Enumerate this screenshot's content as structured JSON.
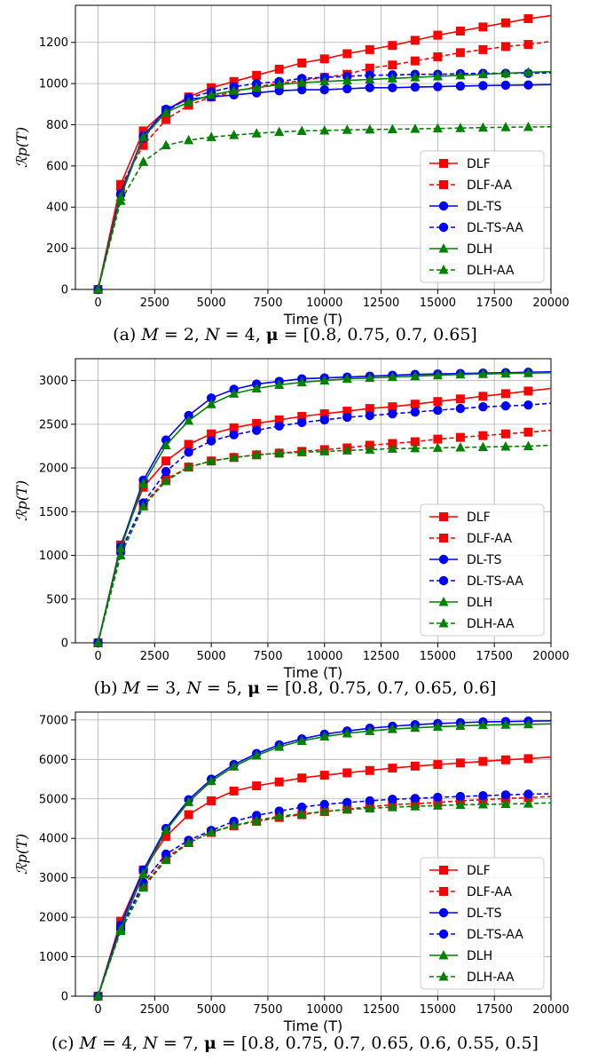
{
  "chart_data": [
    {
      "type": "line",
      "xlabel": "Time (T)",
      "ylabel": "ℛp(T)",
      "xlim": [
        -1000,
        20000
      ],
      "ylim": [
        0,
        1380
      ],
      "xticks": [
        "0",
        "2500",
        "5000",
        "7500",
        "10000",
        "12500",
        "15000",
        "17500",
        "20000"
      ],
      "yticks": [
        "0",
        "200",
        "400",
        "600",
        "800",
        "1000",
        "1200"
      ],
      "ytick_values": [
        0,
        200,
        400,
        600,
        800,
        1000,
        1200
      ],
      "grid": true,
      "legend_position": "lower-right",
      "caption": "(a) M = 2, N = 4, μ = [0.8, 0.75, 0.7, 0.65]",
      "x": [
        0,
        1000,
        2000,
        3000,
        4000,
        5000,
        6000,
        7000,
        8000,
        9000,
        10000,
        11000,
        12000,
        13000,
        14000,
        15000,
        16000,
        17000,
        18000,
        19000,
        20000
      ],
      "series": [
        {
          "name": "DLF",
          "color": "#ff0000",
          "dashed": false,
          "marker": "square",
          "values": [
            0,
            510,
            770,
            870,
            935,
            980,
            1010,
            1040,
            1070,
            1100,
            1120,
            1145,
            1165,
            1185,
            1210,
            1235,
            1255,
            1275,
            1295,
            1315,
            1330
          ]
        },
        {
          "name": "DLF-AA",
          "color": "#ff0000",
          "dashed": true,
          "marker": "square",
          "values": [
            0,
            500,
            700,
            825,
            895,
            935,
            960,
            985,
            1000,
            1015,
            1030,
            1045,
            1075,
            1090,
            1110,
            1130,
            1150,
            1165,
            1180,
            1190,
            1205
          ]
        },
        {
          "name": "DL-TS",
          "color": "#0000ff",
          "dashed": false,
          "marker": "circle",
          "values": [
            0,
            465,
            745,
            875,
            925,
            935,
            945,
            955,
            965,
            970,
            970,
            975,
            980,
            980,
            983,
            985,
            988,
            990,
            992,
            993,
            995
          ]
        },
        {
          "name": "DL-TS-AA",
          "color": "#0000ff",
          "dashed": true,
          "marker": "circle",
          "values": [
            0,
            460,
            735,
            865,
            930,
            960,
            985,
            1000,
            1010,
            1025,
            1030,
            1035,
            1040,
            1042,
            1045,
            1045,
            1048,
            1050,
            1050,
            1050,
            1052
          ]
        },
        {
          "name": "DLH",
          "color": "#008000",
          "dashed": false,
          "marker": "triangle",
          "values": [
            0,
            450,
            740,
            860,
            910,
            945,
            965,
            980,
            995,
            1005,
            1010,
            1015,
            1020,
            1025,
            1030,
            1035,
            1040,
            1045,
            1050,
            1055,
            1058
          ]
        },
        {
          "name": "DLH-AA",
          "color": "#008000",
          "dashed": true,
          "marker": "triangle",
          "values": [
            0,
            430,
            620,
            700,
            725,
            740,
            750,
            758,
            765,
            770,
            772,
            775,
            777,
            778,
            780,
            782,
            784,
            786,
            788,
            789,
            790
          ]
        }
      ]
    },
    {
      "type": "line",
      "xlabel": "Time (T)",
      "ylabel": "ℛp(T)",
      "xlim": [
        -1000,
        20000
      ],
      "ylim": [
        0,
        3250
      ],
      "xticks": [
        "0",
        "2500",
        "5000",
        "7500",
        "10000",
        "12500",
        "15000",
        "17500",
        "20000"
      ],
      "yticks": [
        "0",
        "500",
        "1000",
        "1500",
        "2000",
        "2500",
        "3000"
      ],
      "ytick_values": [
        0,
        500,
        1000,
        1500,
        2000,
        2500,
        3000
      ],
      "grid": true,
      "legend_position": "lower-right",
      "caption": "(b) M = 3, N = 5, μ = [0.8, 0.75, 0.7, 0.65, 0.6]",
      "x": [
        0,
        1000,
        2000,
        3000,
        4000,
        5000,
        6000,
        7000,
        8000,
        9000,
        10000,
        11000,
        12000,
        13000,
        14000,
        15000,
        16000,
        17000,
        18000,
        19000,
        20000
      ],
      "series": [
        {
          "name": "DLF",
          "color": "#ff0000",
          "dashed": false,
          "marker": "square",
          "values": [
            0,
            1120,
            1780,
            2080,
            2270,
            2390,
            2460,
            2510,
            2550,
            2590,
            2620,
            2650,
            2680,
            2700,
            2730,
            2760,
            2790,
            2820,
            2850,
            2880,
            2910
          ]
        },
        {
          "name": "DLF-AA",
          "color": "#ff0000",
          "dashed": true,
          "marker": "square",
          "values": [
            0,
            1060,
            1580,
            1870,
            2010,
            2080,
            2120,
            2150,
            2170,
            2190,
            2210,
            2230,
            2260,
            2280,
            2300,
            2330,
            2350,
            2370,
            2390,
            2410,
            2430
          ]
        },
        {
          "name": "DL-TS",
          "color": "#0000ff",
          "dashed": false,
          "marker": "circle",
          "values": [
            0,
            1100,
            1860,
            2320,
            2600,
            2800,
            2900,
            2960,
            2990,
            3020,
            3030,
            3040,
            3050,
            3060,
            3070,
            3075,
            3080,
            3085,
            3090,
            3095,
            3100
          ]
        },
        {
          "name": "DL-TS-AA",
          "color": "#0000ff",
          "dashed": true,
          "marker": "circle",
          "values": [
            0,
            1040,
            1600,
            1960,
            2180,
            2310,
            2380,
            2430,
            2480,
            2520,
            2550,
            2580,
            2600,
            2620,
            2640,
            2660,
            2680,
            2700,
            2710,
            2720,
            2740
          ]
        },
        {
          "name": "DLH",
          "color": "#008000",
          "dashed": false,
          "marker": "triangle",
          "values": [
            0,
            1080,
            1820,
            2260,
            2540,
            2730,
            2850,
            2910,
            2950,
            2980,
            3000,
            3020,
            3030,
            3040,
            3050,
            3060,
            3070,
            3075,
            3080,
            3085,
            3090
          ]
        },
        {
          "name": "DLH-AA",
          "color": "#008000",
          "dashed": true,
          "marker": "triangle",
          "values": [
            0,
            1000,
            1560,
            1850,
            2010,
            2080,
            2120,
            2150,
            2170,
            2180,
            2190,
            2200,
            2210,
            2220,
            2225,
            2230,
            2235,
            2240,
            2245,
            2250,
            2260
          ]
        }
      ]
    },
    {
      "type": "line",
      "xlabel": "Time (T)",
      "ylabel": "ℛp(T)",
      "xlim": [
        -1000,
        20000
      ],
      "ylim": [
        0,
        7200
      ],
      "xticks": [
        "0",
        "2500",
        "5000",
        "7500",
        "10000",
        "12500",
        "15000",
        "17500",
        "20000"
      ],
      "yticks": [
        "0",
        "1000",
        "2000",
        "3000",
        "4000",
        "5000",
        "6000",
        "7000"
      ],
      "ytick_values": [
        0,
        1000,
        2000,
        3000,
        4000,
        5000,
        6000,
        7000
      ],
      "grid": true,
      "legend_position": "lower-right",
      "caption": "(c) M = 4, N = 7, μ = [0.8, 0.75, 0.7, 0.65, 0.6, 0.55, 0.5]",
      "x": [
        0,
        1000,
        2000,
        3000,
        4000,
        5000,
        6000,
        7000,
        8000,
        9000,
        10000,
        11000,
        12000,
        13000,
        14000,
        15000,
        16000,
        17000,
        18000,
        19000,
        20000
      ],
      "series": [
        {
          "name": "DLF",
          "color": "#ff0000",
          "dashed": false,
          "marker": "square",
          "values": [
            0,
            1900,
            3200,
            4050,
            4600,
            4950,
            5200,
            5330,
            5430,
            5530,
            5600,
            5660,
            5720,
            5780,
            5830,
            5870,
            5910,
            5950,
            5990,
            6020,
            6060
          ]
        },
        {
          "name": "DLF-AA",
          "color": "#ff0000",
          "dashed": true,
          "marker": "square",
          "values": [
            0,
            1750,
            2800,
            3500,
            3900,
            4150,
            4320,
            4430,
            4530,
            4600,
            4680,
            4740,
            4800,
            4850,
            4880,
            4910,
            4950,
            4980,
            5010,
            5030,
            5060
          ]
        },
        {
          "name": "DL-TS",
          "color": "#0000ff",
          "dashed": false,
          "marker": "circle",
          "values": [
            0,
            1800,
            3200,
            4250,
            4980,
            5500,
            5870,
            6150,
            6370,
            6520,
            6640,
            6720,
            6790,
            6840,
            6880,
            6910,
            6930,
            6950,
            6960,
            6970,
            6980
          ]
        },
        {
          "name": "DL-TS-AA",
          "color": "#0000ff",
          "dashed": true,
          "marker": "circle",
          "values": [
            0,
            1700,
            2880,
            3600,
            3950,
            4200,
            4430,
            4580,
            4690,
            4790,
            4860,
            4910,
            4950,
            4990,
            5010,
            5040,
            5060,
            5080,
            5100,
            5120,
            5130
          ]
        },
        {
          "name": "DLH",
          "color": "#008000",
          "dashed": false,
          "marker": "triangle",
          "values": [
            0,
            1700,
            3100,
            4200,
            4920,
            5450,
            5820,
            6100,
            6320,
            6470,
            6580,
            6660,
            6720,
            6770,
            6800,
            6830,
            6850,
            6870,
            6880,
            6890,
            6900
          ]
        },
        {
          "name": "DLH-AA",
          "color": "#008000",
          "dashed": true,
          "marker": "triangle",
          "values": [
            0,
            1650,
            2750,
            3450,
            3880,
            4160,
            4330,
            4450,
            4560,
            4620,
            4680,
            4730,
            4760,
            4790,
            4810,
            4830,
            4850,
            4860,
            4870,
            4880,
            4900
          ]
        }
      ]
    }
  ]
}
